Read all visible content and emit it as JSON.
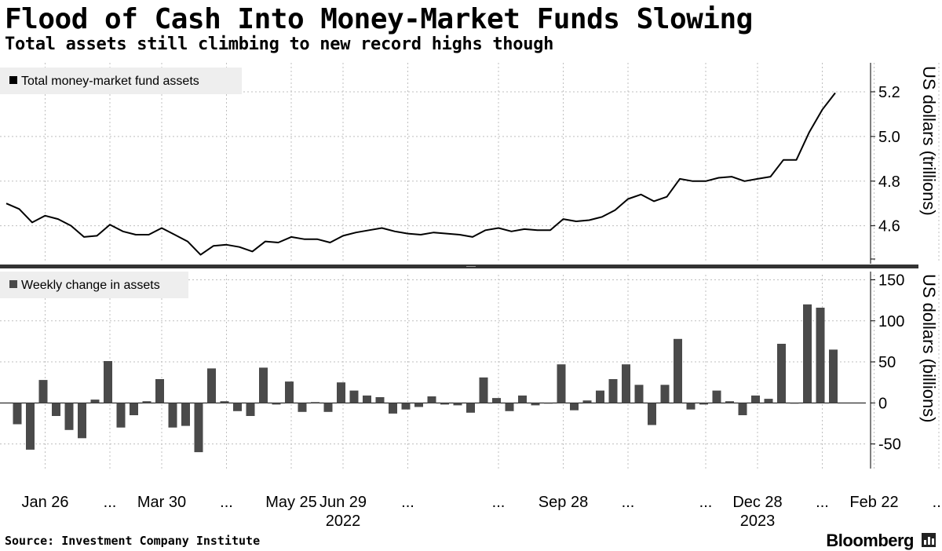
{
  "title": "Flood of Cash Into Money-Market Funds Slowing",
  "subtitle": "Total assets still climbing to new record highs though",
  "source": "Source: Investment Company Institute",
  "brand": "Bloomberg",
  "brand_icon": "bloomberg-chart-icon",
  "colors": {
    "line": "#000000",
    "bars": "#4a4a4a",
    "legend_bg": "#eeeeee",
    "grid": "#bfbfbf"
  },
  "chart_data": [
    {
      "type": "line",
      "legend": "Total money-market fund assets",
      "ylabel": "US dollars (trillions)",
      "ylim": [
        4.43,
        5.33
      ],
      "yticks": [
        "4.6",
        "4.8",
        "5.0",
        "5.2"
      ],
      "ytick_values": [
        4.6,
        4.8,
        5.0,
        5.2
      ],
      "values": [
        4.7,
        4.675,
        4.615,
        4.645,
        4.63,
        4.6,
        4.55,
        4.555,
        4.605,
        4.575,
        4.56,
        4.56,
        4.59,
        4.56,
        4.53,
        4.47,
        4.51,
        4.515,
        4.505,
        4.485,
        4.53,
        4.525,
        4.55,
        4.54,
        4.54,
        4.525,
        4.555,
        4.57,
        4.58,
        4.59,
        4.575,
        4.565,
        4.56,
        4.57,
        4.565,
        4.56,
        4.55,
        4.58,
        4.59,
        4.575,
        4.585,
        4.58,
        4.58,
        4.63,
        4.62,
        4.625,
        4.64,
        4.67,
        4.72,
        4.74,
        4.71,
        4.73,
        4.81,
        4.8,
        4.8,
        4.815,
        4.82,
        4.8,
        4.81,
        4.82,
        4.895,
        4.895,
        5.02,
        5.12,
        5.195
      ]
    },
    {
      "type": "bar",
      "legend": "Weekly change in assets",
      "ylabel": "US dollars (billions)",
      "ylim": [
        -80,
        160
      ],
      "yticks": [
        "-50",
        "0",
        "50",
        "100",
        "150"
      ],
      "ytick_values": [
        -50,
        0,
        50,
        100,
        150
      ],
      "values": [
        -26,
        -57,
        28,
        -16,
        -33,
        -43,
        4,
        51,
        -30,
        -15,
        2,
        29,
        -30,
        -28,
        -60,
        42,
        2,
        -10,
        -16,
        43,
        -2,
        26,
        -11,
        1,
        -11,
        25,
        15,
        9,
        7,
        -13,
        -8,
        -5,
        8,
        -2,
        -3,
        -12,
        31,
        6,
        -10,
        9,
        -3,
        -1,
        47,
        -9,
        3,
        15,
        29,
        47,
        22,
        -27,
        22,
        78,
        -8,
        -2,
        15,
        2,
        -15,
        9,
        5,
        72,
        -1,
        120,
        116,
        65
      ]
    }
  ],
  "x_tick_labels": [
    "Jan 26",
    "...",
    "Mar 30",
    "...",
    "May 25",
    "Jun 29",
    "...",
    "...",
    "Sep 28",
    "...",
    "...",
    "Dec 28",
    "...",
    "Feb 22",
    "..."
  ],
  "x_tick_index": [
    3,
    8,
    12,
    17,
    22,
    26,
    31,
    38,
    43,
    48,
    54,
    58,
    63,
    67,
    72
  ],
  "year_labels": [
    "2022",
    "2023"
  ]
}
